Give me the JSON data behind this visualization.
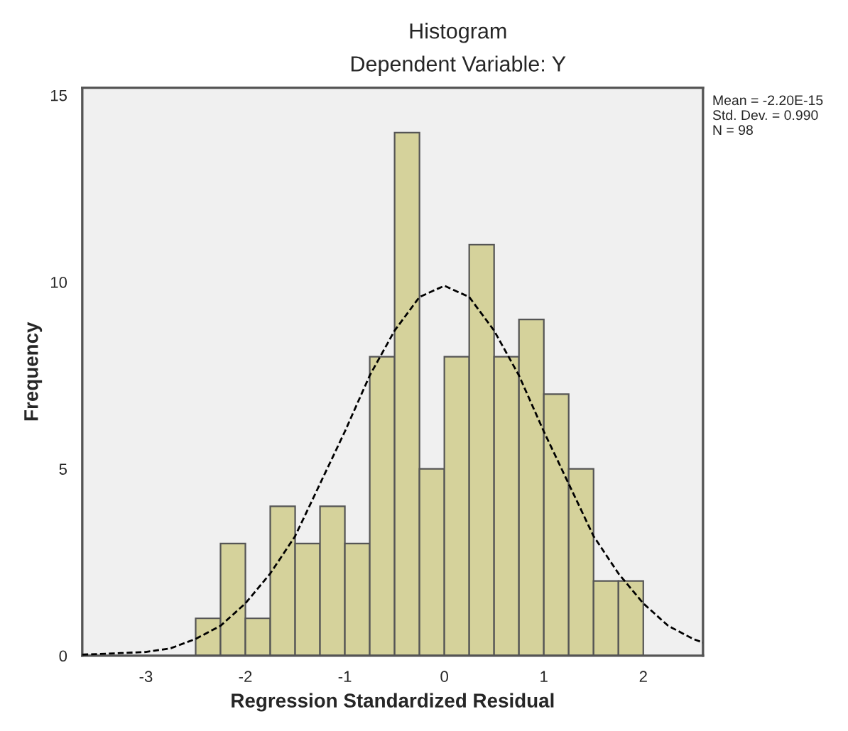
{
  "chart_data": {
    "type": "histogram",
    "title": "Histogram",
    "subtitle": "Dependent Variable: Y",
    "xlabel": "Regression Standardized Residual",
    "ylabel": "Frequency",
    "bins": [
      -2.5,
      -2.25,
      -2.0,
      -1.75,
      -1.5,
      -1.25,
      -1.0,
      -0.75,
      -0.5,
      -0.25,
      0.0,
      0.25,
      0.5,
      0.75,
      1.0,
      1.25,
      1.5,
      1.75,
      2.0
    ],
    "values": [
      1,
      3,
      1,
      4,
      3,
      4,
      3,
      8,
      14,
      5,
      8,
      11,
      8,
      9,
      7,
      5,
      2,
      2
    ],
    "color": "#d5d29b",
    "series": [
      {
        "type": "line",
        "color": "#000000",
        "line_style": "dashed",
        "x": [
          -3.64,
          -3.25,
          -3.0,
          -2.75,
          -2.5,
          -2.25,
          -2.0,
          -1.75,
          -1.5,
          -1.25,
          -1.0,
          -0.75,
          -0.5,
          -0.25,
          0.0,
          0.25,
          0.5,
          0.75,
          1.0,
          1.25,
          1.5,
          1.75,
          2.0,
          2.25,
          2.5,
          2.6
        ],
        "values": [
          0.03,
          0.07,
          0.1,
          0.2,
          0.45,
          0.8,
          1.4,
          2.2,
          3.2,
          4.6,
          6.0,
          7.5,
          8.7,
          9.6,
          9.9,
          9.6,
          8.7,
          7.5,
          6.0,
          4.6,
          3.2,
          2.2,
          1.4,
          0.8,
          0.45,
          0.35
        ]
      }
    ],
    "xlim": [
      -3.64,
      2.6
    ],
    "ylim": [
      0,
      15.2
    ],
    "xticks": [
      -3,
      -2,
      -1,
      0,
      1,
      2
    ],
    "yticks": [
      0,
      5,
      10,
      15
    ],
    "annotations": [
      "Mean = -2.20E-15\nStd. Dev. = 0.990\nN = 98"
    ]
  }
}
